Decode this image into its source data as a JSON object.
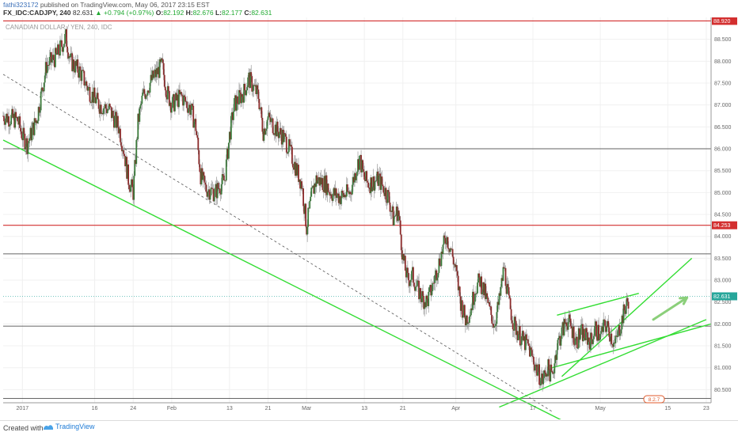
{
  "header": {
    "user": "fathi323172",
    "published": "published on TradingView.com, May 06, 2017 23:15 EST",
    "symbol": "FX_IDC:CADJPY, 240",
    "last": "82.631",
    "change": "▲ +0.794 (+0.97%)",
    "open_label": "O:",
    "open": "82.192",
    "high_label": "H:",
    "high": "82.676",
    "low_label": "L:",
    "low": "82.177",
    "close_label": "C:",
    "close": "82.631"
  },
  "footer": {
    "created": "Created with",
    "brand": "TradingView"
  },
  "chart_data": {
    "type": "candlestick",
    "title": "CANADIAN DOLLAR / YEN, 240, IDC",
    "ylim": [
      80.2,
      89.0
    ],
    "y_ticks": [
      80.5,
      81.0,
      81.5,
      82.0,
      82.5,
      83.0,
      83.5,
      84.0,
      84.5,
      85.0,
      85.5,
      86.0,
      86.5,
      87.0,
      87.5,
      88.0,
      88.5
    ],
    "y_tick_labels": [
      "80.500",
      "81.000",
      "81.500",
      "82.000",
      "82.500",
      "83.000",
      "83.500",
      "84.000",
      "84.500",
      "85.000",
      "85.500",
      "86.000",
      "86.500",
      "87.000",
      "87.500",
      "88.000",
      "88.500"
    ],
    "x_ticks": [
      {
        "label": "2017",
        "day": 0
      },
      {
        "label": "16",
        "day": 15
      },
      {
        "label": "24",
        "day": 23
      },
      {
        "label": "Feb",
        "day": 31
      },
      {
        "label": "13",
        "day": 43
      },
      {
        "label": "21",
        "day": 51
      },
      {
        "label": "Mar",
        "day": 59
      },
      {
        "label": "13",
        "day": 71
      },
      {
        "label": "21",
        "day": 79
      },
      {
        "label": "Apr",
        "day": 90
      },
      {
        "label": "17",
        "day": 106
      },
      {
        "label": "May",
        "day": 120
      },
      {
        "label": "15",
        "day": 134
      },
      {
        "label": "23",
        "day": 142
      }
    ],
    "xlim_days": [
      -4,
      143
    ],
    "price_path": [
      [
        -4,
        86.75
      ],
      [
        -1,
        86.65
      ],
      [
        0,
        86.3
      ],
      [
        1,
        86.1
      ],
      [
        3,
        86.7
      ],
      [
        5,
        87.9
      ],
      [
        7,
        88.1
      ],
      [
        9,
        88.55
      ],
      [
        10,
        88.0
      ],
      [
        12,
        87.75
      ],
      [
        14,
        87.3
      ],
      [
        16,
        87.0
      ],
      [
        18,
        86.9
      ],
      [
        20,
        86.5
      ],
      [
        21,
        86.0
      ],
      [
        22,
        85.3
      ],
      [
        23,
        85.0
      ],
      [
        24,
        86.6
      ],
      [
        25,
        87.2
      ],
      [
        27,
        87.6
      ],
      [
        29,
        87.9
      ],
      [
        30,
        87.3
      ],
      [
        31,
        87.0
      ],
      [
        33,
        87.2
      ],
      [
        35,
        86.9
      ],
      [
        36,
        86.5
      ],
      [
        37,
        85.4
      ],
      [
        38,
        85.1
      ],
      [
        40,
        85.0
      ],
      [
        42,
        85.3
      ],
      [
        43,
        86.3
      ],
      [
        44,
        87.0
      ],
      [
        46,
        87.3
      ],
      [
        47,
        87.6
      ],
      [
        48,
        87.4
      ],
      [
        49,
        87.2
      ],
      [
        50,
        86.4
      ],
      [
        51,
        86.7
      ],
      [
        53,
        86.4
      ],
      [
        54,
        86.3
      ],
      [
        55,
        86.1
      ],
      [
        56,
        85.8
      ],
      [
        57,
        85.5
      ],
      [
        58,
        85.2
      ],
      [
        59,
        84.2
      ],
      [
        60,
        84.9
      ],
      [
        61,
        85.3
      ],
      [
        63,
        85.2
      ],
      [
        64,
        85.0
      ],
      [
        66,
        84.9
      ],
      [
        68,
        85.0
      ],
      [
        69,
        85.4
      ],
      [
        70,
        85.8
      ],
      [
        71,
        85.3
      ],
      [
        72,
        85.2
      ],
      [
        74,
        85.3
      ],
      [
        75,
        85.1
      ],
      [
        76,
        84.9
      ],
      [
        77,
        84.4
      ],
      [
        78,
        84.6
      ],
      [
        79,
        83.5
      ],
      [
        80,
        83.0
      ],
      [
        81,
        83.1
      ],
      [
        82,
        82.8
      ],
      [
        83,
        82.6
      ],
      [
        84,
        82.5
      ],
      [
        85,
        82.8
      ],
      [
        86,
        83.2
      ],
      [
        87,
        83.6
      ],
      [
        88,
        84.0
      ],
      [
        89,
        83.7
      ],
      [
        90,
        83.2
      ],
      [
        91,
        82.5
      ],
      [
        92,
        82.1
      ],
      [
        93,
        82.3
      ],
      [
        94,
        82.8
      ],
      [
        95,
        83.0
      ],
      [
        96,
        82.7
      ],
      [
        97,
        82.3
      ],
      [
        98,
        82.0
      ],
      [
        99,
        82.5
      ],
      [
        100,
        83.3
      ],
      [
        101,
        82.5
      ],
      [
        102,
        82.0
      ],
      [
        103,
        81.8
      ],
      [
        104,
        81.6
      ],
      [
        105,
        81.5
      ],
      [
        106,
        81.2
      ],
      [
        107,
        80.9
      ],
      [
        108,
        80.7
      ],
      [
        109,
        81.0
      ],
      [
        110,
        80.8
      ],
      [
        111,
        81.5
      ],
      [
        112,
        81.8
      ],
      [
        113,
        82.1
      ],
      [
        114,
        81.9
      ],
      [
        115,
        81.6
      ],
      [
        116,
        81.8
      ],
      [
        117,
        81.7
      ],
      [
        118,
        81.6
      ],
      [
        119,
        81.9
      ],
      [
        120,
        81.7
      ],
      [
        121,
        82.0
      ],
      [
        122,
        81.8
      ],
      [
        123,
        81.5
      ],
      [
        124,
        81.9
      ],
      [
        125,
        82.3
      ],
      [
        126,
        82.6
      ]
    ],
    "annotations": {
      "last_price_label": "82.631",
      "red_levels": [
        {
          "y": 88.92,
          "label": "88.920"
        },
        {
          "y": 84.253,
          "label": "84.253"
        }
      ],
      "black_levels": [
        86.0,
        83.6,
        81.95,
        80.3
      ],
      "dashed_trend": [
        [
          -4,
          87.7
        ],
        [
          110,
          80.0
        ]
      ],
      "green_lines": [
        [
          [
            -4,
            86.2
          ],
          [
            112,
            79.8
          ]
        ],
        [
          [
            99,
            80.1
          ],
          [
            142,
            82.1
          ]
        ],
        [
          [
            110,
            81.0
          ],
          [
            143,
            82.0
          ]
        ],
        [
          [
            112,
            80.8
          ],
          [
            139,
            83.5
          ]
        ],
        [
          [
            111,
            82.2
          ],
          [
            128,
            82.7
          ]
        ]
      ],
      "green_arrow": [
        [
          131,
          82.1
        ],
        [
          138,
          82.6
        ]
      ],
      "bottom_marker": "8.2.7"
    }
  }
}
